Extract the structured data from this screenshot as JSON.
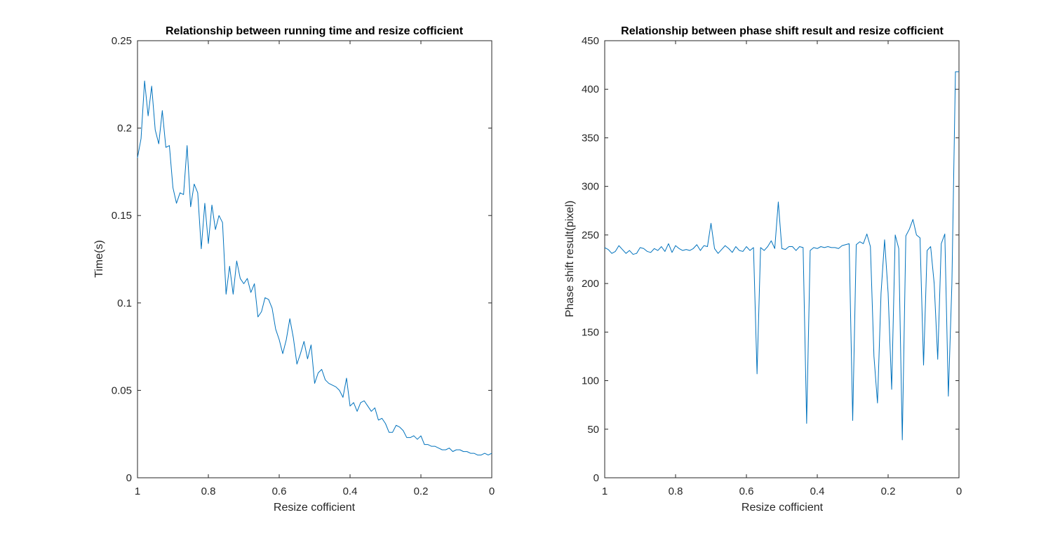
{
  "colors": {
    "series": "#0072bd",
    "axis": "#262626",
    "background": "#ffffff"
  },
  "chart_data": [
    {
      "type": "line",
      "title": "Relationship between running time and resize cofficient",
      "xlabel": "Resize cofficient",
      "ylabel": "Time(s)",
      "xlim": [
        1,
        0
      ],
      "ylim": [
        0,
        0.25
      ],
      "x_reversed": true,
      "xticks": [
        "1",
        "0.8",
        "0.6",
        "0.4",
        "0.2",
        "0"
      ],
      "xtick_values": [
        1,
        0.8,
        0.6,
        0.4,
        0.2,
        0
      ],
      "yticks": [
        "0",
        "0.05",
        "0.1",
        "0.15",
        "0.2",
        "0.25"
      ],
      "ytick_values": [
        0,
        0.05,
        0.1,
        0.15,
        0.2,
        0.25
      ],
      "grid": false,
      "series": [
        {
          "x": [
            1.0,
            0.99,
            0.98,
            0.97,
            0.96,
            0.95,
            0.94,
            0.93,
            0.92,
            0.91,
            0.9,
            0.89,
            0.88,
            0.87,
            0.86,
            0.85,
            0.84,
            0.83,
            0.82,
            0.81,
            0.8,
            0.79,
            0.78,
            0.77,
            0.76,
            0.75,
            0.74,
            0.73,
            0.72,
            0.71,
            0.7,
            0.69,
            0.68,
            0.67,
            0.66,
            0.65,
            0.64,
            0.63,
            0.62,
            0.61,
            0.6,
            0.59,
            0.58,
            0.57,
            0.56,
            0.55,
            0.54,
            0.53,
            0.52,
            0.51,
            0.5,
            0.49,
            0.48,
            0.47,
            0.46,
            0.45,
            0.44,
            0.43,
            0.42,
            0.41,
            0.4,
            0.39,
            0.38,
            0.37,
            0.36,
            0.35,
            0.34,
            0.33,
            0.32,
            0.31,
            0.3,
            0.29,
            0.28,
            0.27,
            0.26,
            0.25,
            0.24,
            0.23,
            0.22,
            0.21,
            0.2,
            0.19,
            0.18,
            0.17,
            0.16,
            0.15,
            0.14,
            0.13,
            0.12,
            0.11,
            0.1,
            0.09,
            0.08,
            0.07,
            0.06,
            0.05,
            0.04,
            0.03,
            0.02,
            0.01,
            0.0
          ],
          "values": [
            0.183,
            0.194,
            0.227,
            0.207,
            0.224,
            0.199,
            0.191,
            0.21,
            0.189,
            0.19,
            0.166,
            0.157,
            0.163,
            0.162,
            0.19,
            0.155,
            0.168,
            0.163,
            0.131,
            0.157,
            0.134,
            0.156,
            0.142,
            0.15,
            0.146,
            0.105,
            0.121,
            0.105,
            0.124,
            0.114,
            0.111,
            0.114,
            0.106,
            0.111,
            0.092,
            0.095,
            0.103,
            0.102,
            0.097,
            0.085,
            0.079,
            0.071,
            0.079,
            0.091,
            0.08,
            0.065,
            0.071,
            0.078,
            0.068,
            0.076,
            0.054,
            0.06,
            0.062,
            0.056,
            0.054,
            0.053,
            0.052,
            0.05,
            0.046,
            0.057,
            0.041,
            0.043,
            0.038,
            0.043,
            0.044,
            0.041,
            0.038,
            0.04,
            0.033,
            0.034,
            0.031,
            0.026,
            0.026,
            0.03,
            0.029,
            0.027,
            0.023,
            0.023,
            0.024,
            0.022,
            0.024,
            0.019,
            0.019,
            0.018,
            0.018,
            0.017,
            0.016,
            0.016,
            0.017,
            0.015,
            0.016,
            0.016,
            0.015,
            0.015,
            0.014,
            0.014,
            0.013,
            0.013,
            0.014,
            0.013,
            0.014
          ]
        }
      ]
    },
    {
      "type": "line",
      "title": "Relationship between phase shift result and resize cofficient",
      "xlabel": "Resize cofficient",
      "ylabel": "Phase shift result(pixel)",
      "xlim": [
        1,
        0
      ],
      "ylim": [
        0,
        450
      ],
      "x_reversed": true,
      "xticks": [
        "1",
        "0.8",
        "0.6",
        "0.4",
        "0.2",
        "0"
      ],
      "xtick_values": [
        1,
        0.8,
        0.6,
        0.4,
        0.2,
        0
      ],
      "yticks": [
        "0",
        "50",
        "100",
        "150",
        "200",
        "250",
        "300",
        "350",
        "400",
        "450"
      ],
      "ytick_values": [
        0,
        50,
        100,
        150,
        200,
        250,
        300,
        350,
        400,
        450
      ],
      "grid": false,
      "series": [
        {
          "x": [
            1.0,
            0.99,
            0.98,
            0.97,
            0.96,
            0.95,
            0.94,
            0.93,
            0.92,
            0.91,
            0.9,
            0.89,
            0.88,
            0.87,
            0.86,
            0.85,
            0.84,
            0.83,
            0.82,
            0.81,
            0.8,
            0.79,
            0.78,
            0.77,
            0.76,
            0.75,
            0.74,
            0.73,
            0.72,
            0.71,
            0.7,
            0.69,
            0.68,
            0.67,
            0.66,
            0.65,
            0.64,
            0.63,
            0.62,
            0.61,
            0.6,
            0.59,
            0.58,
            0.57,
            0.56,
            0.55,
            0.54,
            0.53,
            0.52,
            0.51,
            0.5,
            0.49,
            0.48,
            0.47,
            0.46,
            0.45,
            0.44,
            0.43,
            0.42,
            0.41,
            0.4,
            0.39,
            0.38,
            0.37,
            0.36,
            0.35,
            0.34,
            0.33,
            0.32,
            0.31,
            0.3,
            0.29,
            0.28,
            0.27,
            0.26,
            0.25,
            0.24,
            0.23,
            0.22,
            0.21,
            0.2,
            0.19,
            0.18,
            0.17,
            0.16,
            0.15,
            0.14,
            0.13,
            0.12,
            0.11,
            0.1,
            0.09,
            0.08,
            0.07,
            0.06,
            0.05,
            0.04,
            0.03,
            0.02,
            0.01,
            0.0
          ],
          "values": [
            237,
            235,
            231,
            233,
            239,
            235,
            231,
            234,
            230,
            231,
            237,
            236,
            233,
            232,
            236,
            234,
            238,
            233,
            241,
            232,
            239,
            236,
            234,
            235,
            234,
            236,
            240,
            234,
            239,
            238,
            262,
            236,
            231,
            235,
            239,
            236,
            232,
            238,
            234,
            233,
            238,
            234,
            237,
            107,
            237,
            234,
            238,
            244,
            236,
            284,
            236,
            235,
            238,
            238,
            234,
            238,
            237,
            56,
            234,
            237,
            236,
            238,
            237,
            238,
            237,
            237,
            236,
            239,
            240,
            241,
            59,
            240,
            243,
            241,
            251,
            238,
            125,
            77,
            190,
            245,
            190,
            91,
            250,
            236,
            39,
            249,
            256,
            266,
            250,
            247,
            116,
            234,
            238,
            200,
            122,
            241,
            251,
            84,
            200,
            418,
            418
          ]
        }
      ]
    }
  ]
}
